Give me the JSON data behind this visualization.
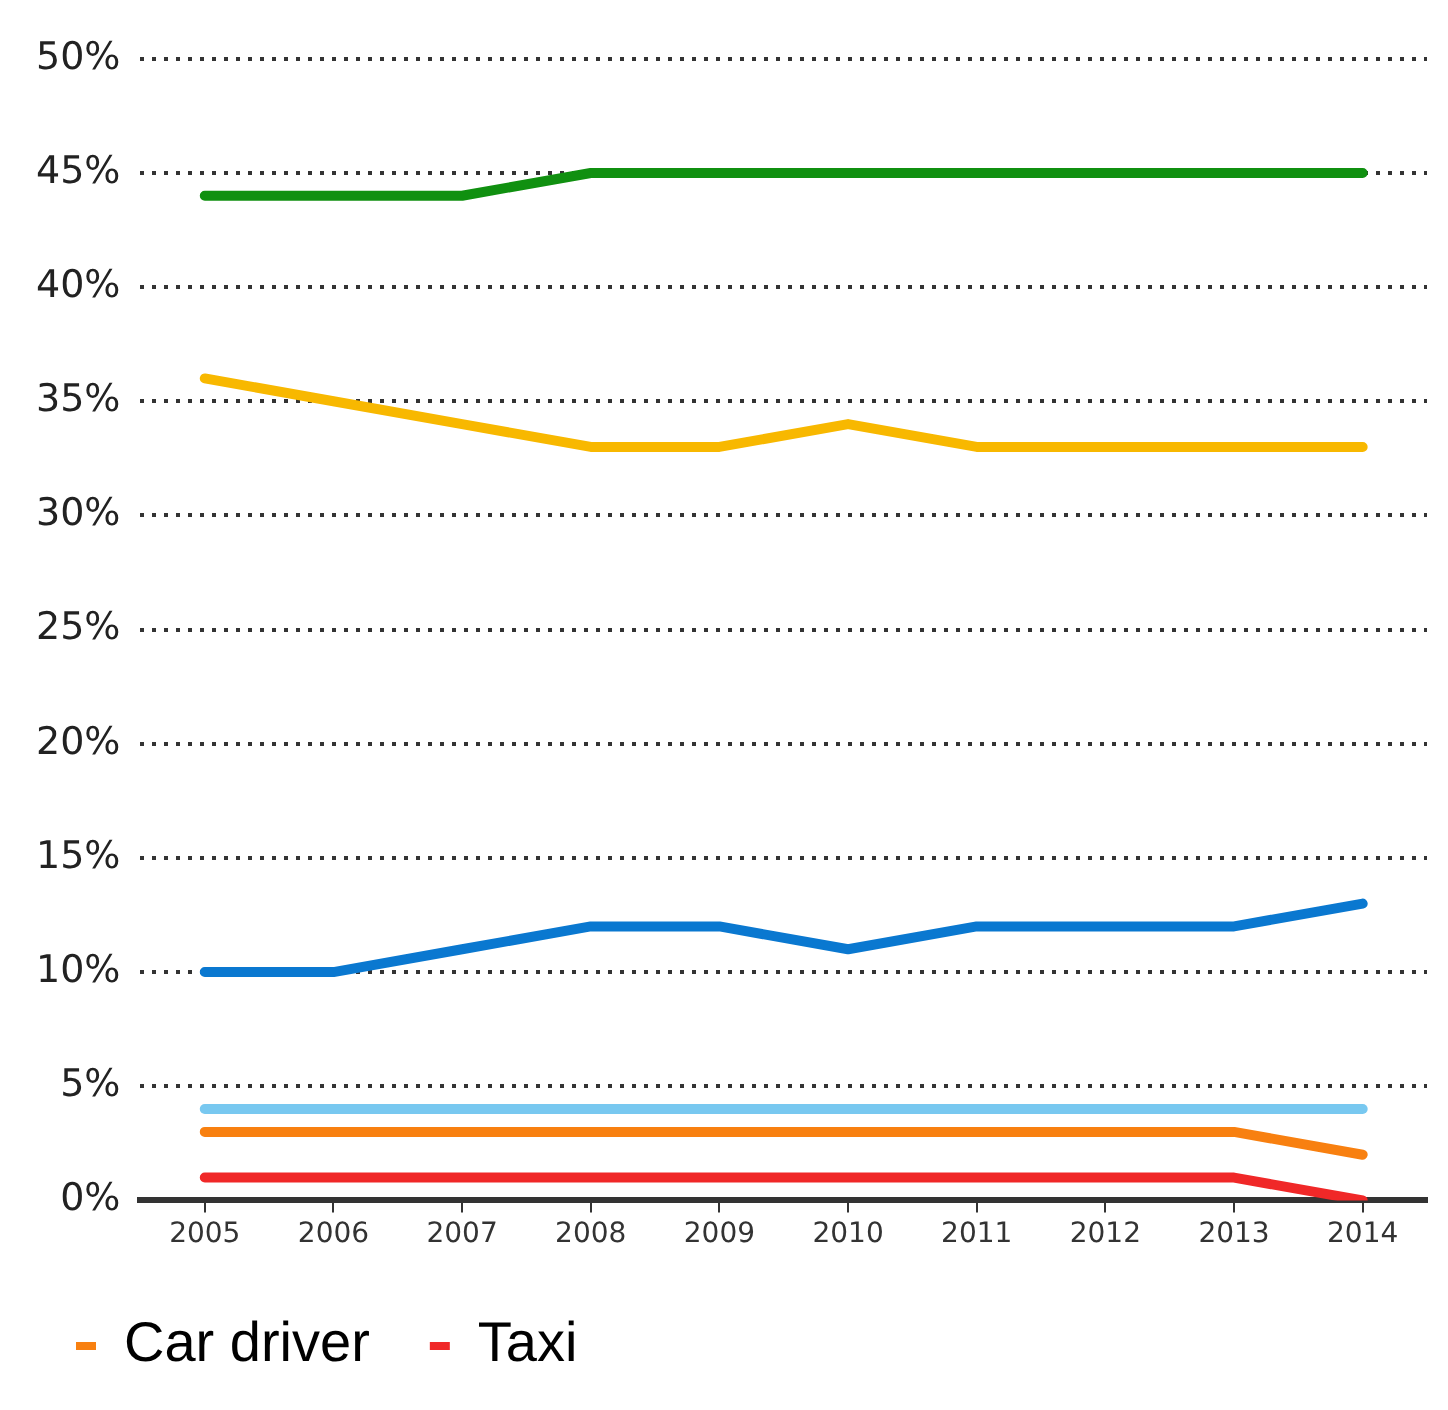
{
  "chart_data": {
    "type": "line",
    "categories": [
      "2005",
      "2006",
      "2007",
      "2008",
      "2009",
      "2010",
      "2011",
      "2012",
      "2013",
      "2014"
    ],
    "series": [
      {
        "color": "#109010",
        "values": [
          44,
          44,
          44,
          45,
          45,
          45,
          45,
          45,
          45,
          45
        ]
      },
      {
        "color": "#f8b800",
        "values": [
          36,
          35,
          34,
          33,
          33,
          34,
          33,
          33,
          33,
          33
        ]
      },
      {
        "color": "#0a78d0",
        "values": [
          10,
          10,
          11,
          12,
          12,
          11,
          12,
          12,
          12,
          13
        ]
      },
      {
        "color": "#78c8f0",
        "values": [
          4,
          4,
          4,
          4,
          4,
          4,
          4,
          4,
          4,
          4
        ]
      },
      {
        "name": "Car driver",
        "color": "#f88010",
        "values": [
          3,
          3,
          3,
          3,
          3,
          3,
          3,
          3,
          3,
          2
        ]
      },
      {
        "name": "Taxi",
        "color": "#f02828",
        "values": [
          1,
          1,
          1,
          1,
          1,
          1,
          1,
          1,
          1,
          0
        ]
      }
    ],
    "ylim": [
      0,
      50
    ],
    "yticks": [
      {
        "value": 0,
        "label": "0%"
      },
      {
        "value": 5,
        "label": "5%"
      },
      {
        "value": 10,
        "label": "10%"
      },
      {
        "value": 15,
        "label": "15%"
      },
      {
        "value": 20,
        "label": "20%"
      },
      {
        "value": 25,
        "label": "25%"
      },
      {
        "value": 30,
        "label": "30%"
      },
      {
        "value": 35,
        "label": "35%"
      },
      {
        "value": 40,
        "label": "40%"
      },
      {
        "value": 45,
        "label": "45%"
      },
      {
        "value": 50,
        "label": "50%"
      }
    ],
    "grid": "y",
    "legend": "bottom left",
    "marker": "none",
    "line_style": "solid"
  }
}
